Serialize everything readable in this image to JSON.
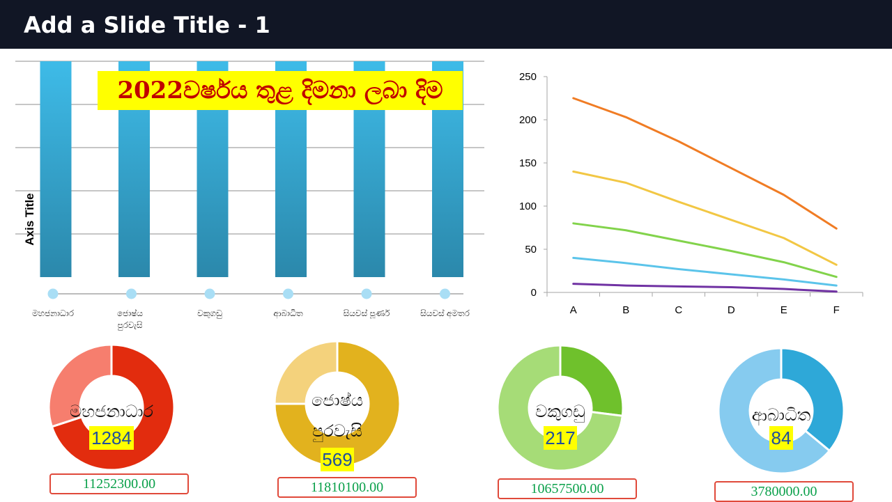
{
  "header": {
    "title": "Add a Slide Title - 1"
  },
  "chart_data": [
    {
      "type": "bar",
      "title": "2022වර්ෂය තුළ  දිමනා ලබා දිම",
      "ylabel": "Axis Title",
      "categories": [
        "මහජනාධාර",
        "ජොෂ්ය පුරවැසි",
        "වකුගඩු",
        "ආබාධිත",
        "සියවස් පූර්ණ",
        "සියවස් අමතර"
      ],
      "values": [
        100,
        100,
        100,
        100,
        100,
        100
      ],
      "ylim": [
        0,
        100
      ],
      "grid": true,
      "colors": {
        "bar_top": "#3ebbe8",
        "bar_bottom": "#2b88ab",
        "marker": "#a9def5"
      }
    },
    {
      "type": "line",
      "categories": [
        "A",
        "B",
        "C",
        "D",
        "E",
        "F"
      ],
      "ylim": [
        0,
        250
      ],
      "yticks": [
        0,
        50,
        100,
        150,
        200,
        250
      ],
      "grid": false,
      "series": [
        {
          "values": [
            225,
            203,
            175,
            144,
            113,
            74
          ],
          "color": "#f07c24"
        },
        {
          "values": [
            140,
            127,
            105,
            84,
            63,
            32
          ],
          "color": "#f2c744"
        },
        {
          "values": [
            80,
            72,
            60,
            48,
            35,
            18
          ],
          "color": "#82d34b"
        },
        {
          "values": [
            40,
            34,
            27,
            21,
            15,
            8
          ],
          "color": "#5bc4ea"
        },
        {
          "values": [
            10,
            8,
            7,
            6,
            4,
            1
          ],
          "color": "#7032a3"
        }
      ]
    },
    {
      "type": "pie",
      "variant": "donut",
      "label": "මහජනාධාර",
      "value": "1284",
      "amount": "11252300.00",
      "slices": [
        70,
        30
      ],
      "colors": [
        "#e22c0e",
        "#f67e6e"
      ]
    },
    {
      "type": "pie",
      "variant": "donut",
      "label": "ජොෂ්ය පුරවැසි",
      "value": "569",
      "amount": "11810100.00",
      "slices": [
        75,
        25
      ],
      "colors": [
        "#e2b21e",
        "#f4d27c"
      ]
    },
    {
      "type": "pie",
      "variant": "donut",
      "label": "වකුගඩු",
      "value": "217",
      "amount": "10657500.00",
      "slices": [
        27,
        73
      ],
      "colors": [
        "#6fc12c",
        "#a6dc77"
      ]
    },
    {
      "type": "pie",
      "variant": "donut",
      "label": "ආබාධිත",
      "value": "84",
      "amount": "3780000.00",
      "slices": [
        36,
        64
      ],
      "colors": [
        "#2ea8d8",
        "#86cbef"
      ]
    }
  ]
}
